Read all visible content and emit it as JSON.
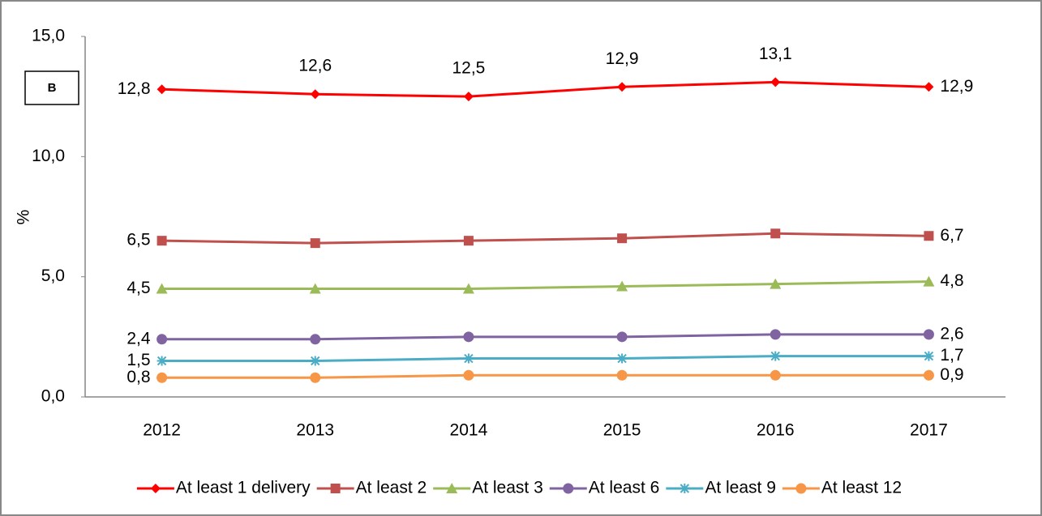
{
  "chart_data": {
    "type": "line",
    "annotation": "B",
    "y_label": "%",
    "categories": [
      "2012",
      "2013",
      "2014",
      "2015",
      "2016",
      "2017"
    ],
    "ylim": [
      0,
      15
    ],
    "yticks": [
      {
        "value": 0,
        "label": "0,0"
      },
      {
        "value": 5,
        "label": "5,0"
      },
      {
        "value": 10,
        "label": "10,0"
      },
      {
        "value": 15,
        "label": "15,0"
      }
    ],
    "grid": false,
    "legend": "bottom",
    "series": [
      {
        "name": "At least 1 delivery",
        "color": "#ff0000",
        "marker": "diamond",
        "values": [
          12.8,
          12.6,
          12.5,
          12.9,
          13.1,
          12.9
        ],
        "value_labels": [
          "12,8",
          "12,6",
          "12,5",
          "12,9",
          "13,1",
          "12,9"
        ]
      },
      {
        "name": "At least 2",
        "color": "#c0504d",
        "marker": "square",
        "values": [
          6.5,
          6.4,
          6.5,
          6.6,
          6.8,
          6.7
        ],
        "value_labels": [
          "6,5",
          null,
          null,
          null,
          null,
          "6,7"
        ]
      },
      {
        "name": "At least 3",
        "color": "#9bbb59",
        "marker": "triangle",
        "values": [
          4.5,
          4.5,
          4.5,
          4.6,
          4.7,
          4.8
        ],
        "value_labels": [
          "4,5",
          null,
          null,
          null,
          null,
          "4,8"
        ]
      },
      {
        "name": "At least 6",
        "color": "#8064a2",
        "marker": "circle",
        "values": [
          2.4,
          2.4,
          2.5,
          2.5,
          2.6,
          2.6
        ],
        "value_labels": [
          "2,4",
          null,
          null,
          null,
          null,
          "2,6"
        ]
      },
      {
        "name": "At least 9",
        "color": "#4bacc6",
        "marker": "star",
        "values": [
          1.5,
          1.5,
          1.6,
          1.6,
          1.7,
          1.7
        ],
        "value_labels": [
          "1,5",
          null,
          null,
          null,
          null,
          "1,7"
        ]
      },
      {
        "name": "At least 12",
        "color": "#f79646",
        "marker": "circle",
        "values": [
          0.8,
          0.8,
          0.9,
          0.9,
          0.9,
          0.9
        ],
        "value_labels": [
          "0,8",
          null,
          null,
          null,
          null,
          "0,9"
        ]
      }
    ]
  }
}
